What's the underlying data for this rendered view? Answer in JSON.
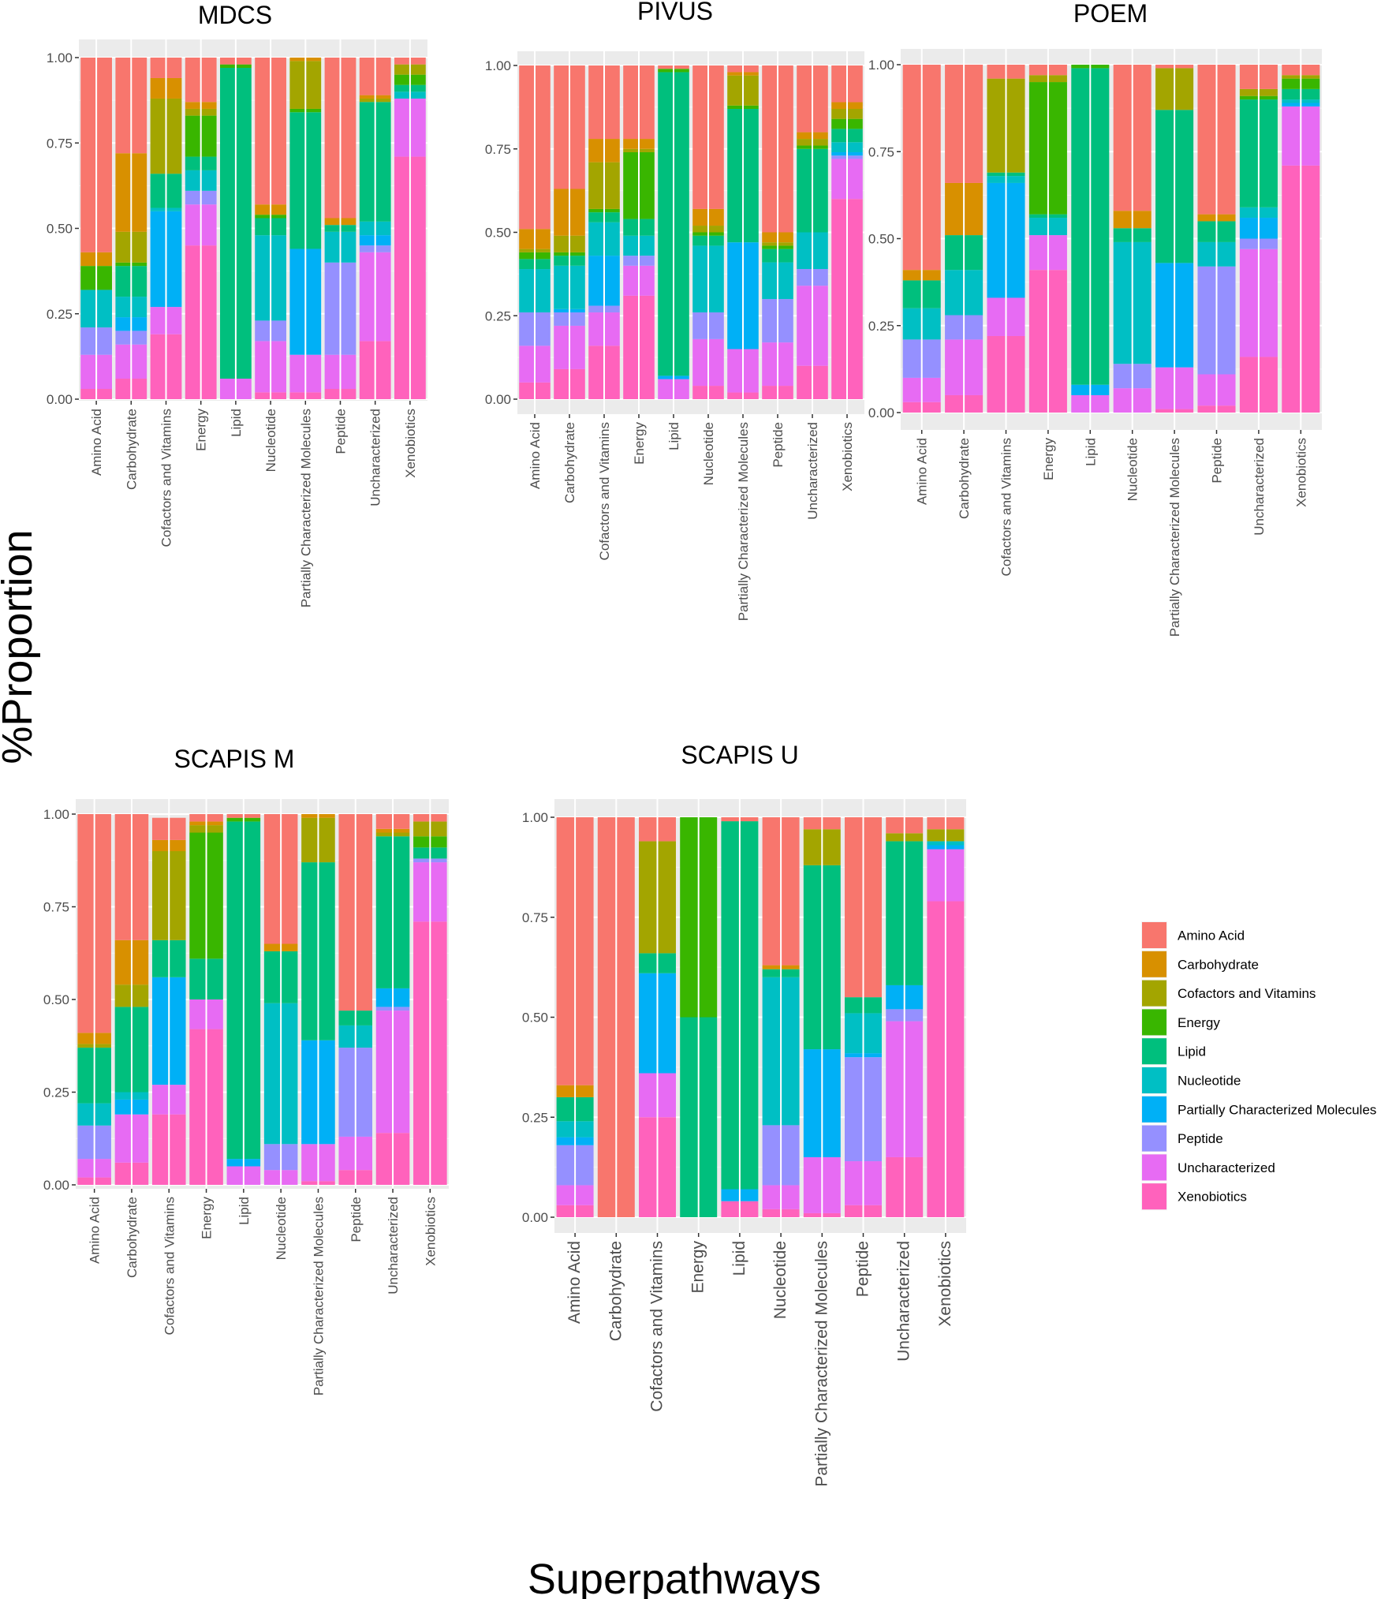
{
  "figure": {
    "ylabel": "%Proportion",
    "xlabel": "Superpathways"
  },
  "colors": {
    "Amino Acid": "#F8766D",
    "Carbohydrate": "#D89000",
    "Cofactors and Vitamins": "#A3A500",
    "Energy": "#39B600",
    "Lipid": "#00BF7D",
    "Nucleotide": "#00BFC4",
    "Partially Characterized Molecules": "#00B0F6",
    "Peptide": "#9590FF",
    "Uncharacterized": "#E76BF3",
    "Xenobiotics": "#FF62BC"
  },
  "legend": {
    "entries": [
      "Amino Acid",
      "Carbohydrate",
      "Cofactors and Vitamins",
      "Energy",
      "Lipid",
      "Nucleotide",
      "Partially Characterized Molecules",
      "Peptide",
      "Uncharacterized",
      "Xenobiotics"
    ]
  },
  "chart_data": [
    {
      "type": "bar",
      "stacked": true,
      "title": "MDCS",
      "xlabel": "",
      "ylabel": "",
      "ylim": [
        0,
        1
      ],
      "yticks": [
        "0.00",
        "0.25",
        "0.50",
        "0.75",
        "1.00"
      ],
      "categories": [
        "Amino Acid",
        "Carbohydrate",
        "Cofactors and Vitamins",
        "Energy",
        "Lipid",
        "Nucleotide",
        "Partially Characterized Molecules",
        "Peptide",
        "Uncharacterized",
        "Xenobiotics"
      ],
      "stack_order_bottom_to_top": [
        "Xenobiotics",
        "Uncharacterized",
        "Peptide",
        "Partially Characterized Molecules",
        "Nucleotide",
        "Lipid",
        "Energy",
        "Cofactors and Vitamins",
        "Carbohydrate",
        "Amino Acid"
      ],
      "series": [
        {
          "name": "Xenobiotics",
          "values": [
            0.03,
            0.06,
            0.19,
            0.45,
            0.0,
            0.02,
            0.02,
            0.03,
            0.17,
            0.71
          ]
        },
        {
          "name": "Uncharacterized",
          "values": [
            0.1,
            0.1,
            0.08,
            0.12,
            0.06,
            0.15,
            0.11,
            0.1,
            0.26,
            0.17
          ]
        },
        {
          "name": "Peptide",
          "values": [
            0.08,
            0.04,
            0.0,
            0.04,
            0.0,
            0.06,
            0.0,
            0.27,
            0.02,
            0.0
          ]
        },
        {
          "name": "Partially Characterized Molecules",
          "values": [
            0.0,
            0.04,
            0.28,
            0.0,
            0.0,
            0.0,
            0.31,
            0.0,
            0.03,
            0.0
          ]
        },
        {
          "name": "Nucleotide",
          "values": [
            0.11,
            0.06,
            0.01,
            0.06,
            0.0,
            0.25,
            0.0,
            0.09,
            0.04,
            0.02
          ]
        },
        {
          "name": "Lipid",
          "values": [
            0.0,
            0.09,
            0.1,
            0.04,
            0.91,
            0.05,
            0.4,
            0.02,
            0.35,
            0.02
          ]
        },
        {
          "name": "Energy",
          "values": [
            0.07,
            0.01,
            0.0,
            0.12,
            0.01,
            0.01,
            0.01,
            0.0,
            0.0,
            0.03
          ]
        },
        {
          "name": "Cofactors and Vitamins",
          "values": [
            0.0,
            0.09,
            0.22,
            0.02,
            0.0,
            0.0,
            0.14,
            0.0,
            0.01,
            0.03
          ]
        },
        {
          "name": "Carbohydrate",
          "values": [
            0.04,
            0.23,
            0.06,
            0.02,
            0.0,
            0.03,
            0.01,
            0.02,
            0.01,
            0.0
          ]
        },
        {
          "name": "Amino Acid",
          "values": [
            0.57,
            0.28,
            0.06,
            0.13,
            0.02,
            0.43,
            0.0,
            0.47,
            0.11,
            0.02
          ]
        }
      ]
    },
    {
      "type": "bar",
      "stacked": true,
      "title": "PIVUS",
      "xlabel": "",
      "ylabel": "",
      "ylim": [
        0,
        1
      ],
      "yticks": [
        "0.00",
        "0.25",
        "0.50",
        "0.75",
        "1.00"
      ],
      "categories": [
        "Amino Acid",
        "Carbohydrate",
        "Cofactors and Vitamins",
        "Energy",
        "Lipid",
        "Nucleotide",
        "Partially Characterized Molecules",
        "Peptide",
        "Uncharacterized",
        "Xenobiotics"
      ],
      "stack_order_bottom_to_top": [
        "Xenobiotics",
        "Uncharacterized",
        "Peptide",
        "Partially Characterized Molecules",
        "Nucleotide",
        "Lipid",
        "Energy",
        "Cofactors and Vitamins",
        "Carbohydrate",
        "Amino Acid"
      ],
      "series": [
        {
          "name": "Xenobiotics",
          "values": [
            0.05,
            0.09,
            0.16,
            0.31,
            0.0,
            0.04,
            0.02,
            0.04,
            0.1,
            0.6
          ]
        },
        {
          "name": "Uncharacterized",
          "values": [
            0.11,
            0.13,
            0.1,
            0.09,
            0.06,
            0.14,
            0.13,
            0.13,
            0.24,
            0.12
          ]
        },
        {
          "name": "Peptide",
          "values": [
            0.1,
            0.04,
            0.02,
            0.03,
            0.0,
            0.08,
            0.0,
            0.13,
            0.05,
            0.01
          ]
        },
        {
          "name": "Partially Characterized Molecules",
          "values": [
            0.0,
            0.01,
            0.15,
            0.0,
            0.01,
            0.0,
            0.32,
            0.0,
            0.0,
            0.01
          ]
        },
        {
          "name": "Nucleotide",
          "values": [
            0.13,
            0.13,
            0.1,
            0.06,
            0.0,
            0.2,
            0.0,
            0.11,
            0.11,
            0.03
          ]
        },
        {
          "name": "Lipid",
          "values": [
            0.03,
            0.03,
            0.03,
            0.05,
            0.91,
            0.03,
            0.4,
            0.04,
            0.25,
            0.04
          ]
        },
        {
          "name": "Energy",
          "values": [
            0.02,
            0.01,
            0.01,
            0.2,
            0.01,
            0.01,
            0.01,
            0.01,
            0.01,
            0.03
          ]
        },
        {
          "name": "Cofactors and Vitamins",
          "values": [
            0.01,
            0.05,
            0.14,
            0.01,
            0.0,
            0.02,
            0.09,
            0.01,
            0.02,
            0.03
          ]
        },
        {
          "name": "Carbohydrate",
          "values": [
            0.06,
            0.14,
            0.07,
            0.03,
            0.0,
            0.05,
            0.01,
            0.03,
            0.02,
            0.02
          ]
        },
        {
          "name": "Amino Acid",
          "values": [
            0.49,
            0.37,
            0.22,
            0.22,
            0.01,
            0.43,
            0.02,
            0.5,
            0.2,
            0.11
          ]
        }
      ]
    },
    {
      "type": "bar",
      "stacked": true,
      "title": "POEM",
      "xlabel": "",
      "ylabel": "",
      "ylim": [
        0,
        1
      ],
      "yticks": [
        "0.00",
        "0.25",
        "0.50",
        "0.75",
        "1.00"
      ],
      "categories": [
        "Amino Acid",
        "Carbohydrate",
        "Cofactors and Vitamins",
        "Energy",
        "Lipid",
        "Nucleotide",
        "Partially Characterized Molecules",
        "Peptide",
        "Uncharacterized",
        "Xenobiotics"
      ],
      "stack_order_bottom_to_top": [
        "Xenobiotics",
        "Uncharacterized",
        "Peptide",
        "Partially Characterized Molecules",
        "Nucleotide",
        "Lipid",
        "Energy",
        "Cofactors and Vitamins",
        "Carbohydrate",
        "Amino Acid"
      ],
      "series": [
        {
          "name": "Xenobiotics",
          "values": [
            0.03,
            0.05,
            0.22,
            0.41,
            0.0,
            0.0,
            0.01,
            0.02,
            0.16,
            0.71
          ]
        },
        {
          "name": "Uncharacterized",
          "values": [
            0.07,
            0.16,
            0.11,
            0.1,
            0.05,
            0.07,
            0.12,
            0.09,
            0.31,
            0.17
          ]
        },
        {
          "name": "Peptide",
          "values": [
            0.11,
            0.07,
            0.0,
            0.0,
            0.0,
            0.07,
            0.0,
            0.31,
            0.03,
            0.0
          ]
        },
        {
          "name": "Partially Characterized Molecules",
          "values": [
            0.0,
            0.0,
            0.33,
            0.0,
            0.03,
            0.0,
            0.3,
            0.0,
            0.06,
            0.01
          ]
        },
        {
          "name": "Nucleotide",
          "values": [
            0.09,
            0.13,
            0.02,
            0.05,
            0.0,
            0.35,
            0.0,
            0.07,
            0.03,
            0.01
          ]
        },
        {
          "name": "Lipid",
          "values": [
            0.08,
            0.1,
            0.01,
            0.01,
            0.91,
            0.04,
            0.44,
            0.06,
            0.31,
            0.03
          ]
        },
        {
          "name": "Energy",
          "values": [
            0.0,
            0.0,
            0.0,
            0.38,
            0.01,
            0.0,
            0.0,
            0.0,
            0.01,
            0.03
          ]
        },
        {
          "name": "Cofactors and Vitamins",
          "values": [
            0.0,
            0.0,
            0.27,
            0.02,
            0.0,
            0.0,
            0.12,
            0.0,
            0.02,
            0.01
          ]
        },
        {
          "name": "Carbohydrate",
          "values": [
            0.03,
            0.15,
            0.0,
            0.0,
            0.0,
            0.05,
            0.0,
            0.02,
            0.0,
            0.0
          ]
        },
        {
          "name": "Amino Acid",
          "values": [
            0.59,
            0.34,
            0.04,
            0.03,
            0.0,
            0.42,
            0.01,
            0.43,
            0.07,
            0.03
          ]
        }
      ]
    },
    {
      "type": "bar",
      "stacked": true,
      "title": "SCAPIS M",
      "xlabel": "",
      "ylabel": "",
      "ylim": [
        0,
        1
      ],
      "yticks": [
        "0.00",
        "0.25",
        "0.50",
        "0.75",
        "1.00"
      ],
      "categories": [
        "Amino Acid",
        "Carbohydrate",
        "Cofactors and Vitamins",
        "Energy",
        "Lipid",
        "Nucleotide",
        "Partially Characterized Molecules",
        "Peptide",
        "Uncharacterized",
        "Xenobiotics"
      ],
      "stack_order_bottom_to_top": [
        "Xenobiotics",
        "Uncharacterized",
        "Peptide",
        "Partially Characterized Molecules",
        "Nucleotide",
        "Lipid",
        "Energy",
        "Cofactors and Vitamins",
        "Carbohydrate",
        "Amino Acid"
      ],
      "series": [
        {
          "name": "Xenobiotics",
          "values": [
            0.02,
            0.06,
            0.19,
            0.42,
            0.0,
            0.0,
            0.01,
            0.04,
            0.14,
            0.71
          ]
        },
        {
          "name": "Uncharacterized",
          "values": [
            0.05,
            0.13,
            0.08,
            0.08,
            0.05,
            0.04,
            0.1,
            0.09,
            0.33,
            0.16
          ]
        },
        {
          "name": "Peptide",
          "values": [
            0.09,
            0.0,
            0.0,
            0.0,
            0.0,
            0.07,
            0.0,
            0.24,
            0.01,
            0.01
          ]
        },
        {
          "name": "Partially Characterized Molecules",
          "values": [
            0.0,
            0.04,
            0.29,
            0.0,
            0.02,
            0.0,
            0.28,
            0.0,
            0.05,
            0.0
          ]
        },
        {
          "name": "Nucleotide",
          "values": [
            0.06,
            0.02,
            0.0,
            0.0,
            0.0,
            0.38,
            0.0,
            0.06,
            0.0,
            0.0
          ]
        },
        {
          "name": "Lipid",
          "values": [
            0.15,
            0.23,
            0.1,
            0.11,
            0.91,
            0.14,
            0.48,
            0.04,
            0.41,
            0.03
          ]
        },
        {
          "name": "Energy",
          "values": [
            0.0,
            0.0,
            0.0,
            0.34,
            0.01,
            0.0,
            0.0,
            0.0,
            0.0,
            0.03
          ]
        },
        {
          "name": "Cofactors and Vitamins",
          "values": [
            0.01,
            0.06,
            0.24,
            0.02,
            0.0,
            0.0,
            0.12,
            0.0,
            0.01,
            0.04
          ]
        },
        {
          "name": "Carbohydrate",
          "values": [
            0.03,
            0.12,
            0.03,
            0.01,
            0.0,
            0.02,
            0.01,
            0.0,
            0.01,
            0.0
          ]
        },
        {
          "name": "Amino Acid",
          "values": [
            0.59,
            0.34,
            0.06,
            0.03,
            0.01,
            0.35,
            0.01,
            0.53,
            0.05,
            0.02
          ]
        }
      ]
    },
    {
      "type": "bar",
      "stacked": true,
      "title": "SCAPIS U",
      "xlabel": "",
      "ylabel": "",
      "ylim": [
        0,
        1
      ],
      "yticks": [
        "0.00",
        "0.25",
        "0.50",
        "0.75",
        "1.00"
      ],
      "categories": [
        "Amino Acid",
        "Carbohydrate",
        "Cofactors and Vitamins",
        "Energy",
        "Lipid",
        "Nucleotide",
        "Partially Characterized Molecules",
        "Peptide",
        "Uncharacterized",
        "Xenobiotics"
      ],
      "stack_order_bottom_to_top": [
        "Xenobiotics",
        "Uncharacterized",
        "Peptide",
        "Partially Characterized Molecules",
        "Nucleotide",
        "Lipid",
        "Energy",
        "Cofactors and Vitamins",
        "Carbohydrate",
        "Amino Acid"
      ],
      "series": [
        {
          "name": "Xenobiotics",
          "values": [
            0.03,
            0.0,
            0.25,
            0.0,
            0.04,
            0.02,
            0.01,
            0.03,
            0.15,
            0.79
          ]
        },
        {
          "name": "Uncharacterized",
          "values": [
            0.05,
            0.0,
            0.11,
            0.0,
            0.0,
            0.06,
            0.14,
            0.11,
            0.34,
            0.13
          ]
        },
        {
          "name": "Peptide",
          "values": [
            0.1,
            0.0,
            0.0,
            0.0,
            0.0,
            0.15,
            0.0,
            0.26,
            0.03,
            0.0
          ]
        },
        {
          "name": "Partially Characterized Molecules",
          "values": [
            0.02,
            0.0,
            0.25,
            0.0,
            0.03,
            0.0,
            0.27,
            0.01,
            0.06,
            0.01
          ]
        },
        {
          "name": "Nucleotide",
          "values": [
            0.04,
            0.0,
            0.0,
            0.0,
            0.0,
            0.37,
            0.0,
            0.1,
            0.0,
            0.01
          ]
        },
        {
          "name": "Lipid",
          "values": [
            0.06,
            0.0,
            0.05,
            0.5,
            0.92,
            0.02,
            0.46,
            0.04,
            0.36,
            0.0
          ]
        },
        {
          "name": "Energy",
          "values": [
            0.0,
            0.0,
            0.0,
            0.5,
            0.0,
            0.0,
            0.0,
            0.0,
            0.0,
            0.0
          ]
        },
        {
          "name": "Cofactors and Vitamins",
          "values": [
            0.0,
            0.0,
            0.28,
            0.0,
            0.0,
            0.0,
            0.09,
            0.0,
            0.02,
            0.03
          ]
        },
        {
          "name": "Carbohydrate",
          "values": [
            0.03,
            0.0,
            0.0,
            0.0,
            0.0,
            0.01,
            0.0,
            0.0,
            0.0,
            0.0
          ]
        },
        {
          "name": "Amino Acid",
          "values": [
            0.67,
            1.0,
            0.06,
            0.0,
            0.01,
            0.37,
            0.03,
            0.45,
            0.05,
            0.03
          ]
        }
      ]
    }
  ]
}
